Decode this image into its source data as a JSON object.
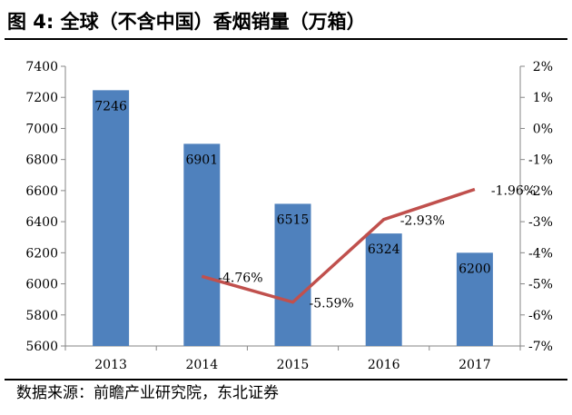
{
  "title": "图 4: 全球（不含中国）香烟销量（万箱）",
  "source": "数据来源：前瞻产业研究院，东北证券",
  "colors": {
    "bar": "#4f81bd",
    "line": "#c0504d",
    "axis": "#868686"
  },
  "chart_data": {
    "type": "bar",
    "categories": [
      "2013",
      "2014",
      "2015",
      "2016",
      "2017"
    ],
    "series": [
      {
        "values": [
          7246,
          6901,
          6515,
          6324,
          6200
        ],
        "labels": [
          "7246",
          "6901",
          "6515",
          "6324",
          "6200"
        ]
      }
    ],
    "line_series": [
      {
        "values": [
          null,
          -4.76,
          -5.59,
          -2.93,
          -1.96
        ],
        "labels": [
          "",
          "-4.76%",
          "-5.59%",
          "-2.93%",
          "-1.96%"
        ]
      }
    ],
    "y_left": {
      "min": 5600,
      "max": 7400,
      "ticks": [
        "7400",
        "7200",
        "7000",
        "6800",
        "6600",
        "6400",
        "6200",
        "6000",
        "5800",
        "5600"
      ]
    },
    "y_right": {
      "min": -7,
      "max": 2,
      "ticks": [
        "2%",
        "1%",
        "0%",
        "-1%",
        "-2%",
        "-3%",
        "-4%",
        "-5%",
        "-6%",
        "-7%"
      ]
    },
    "grid": false,
    "legend": false
  }
}
